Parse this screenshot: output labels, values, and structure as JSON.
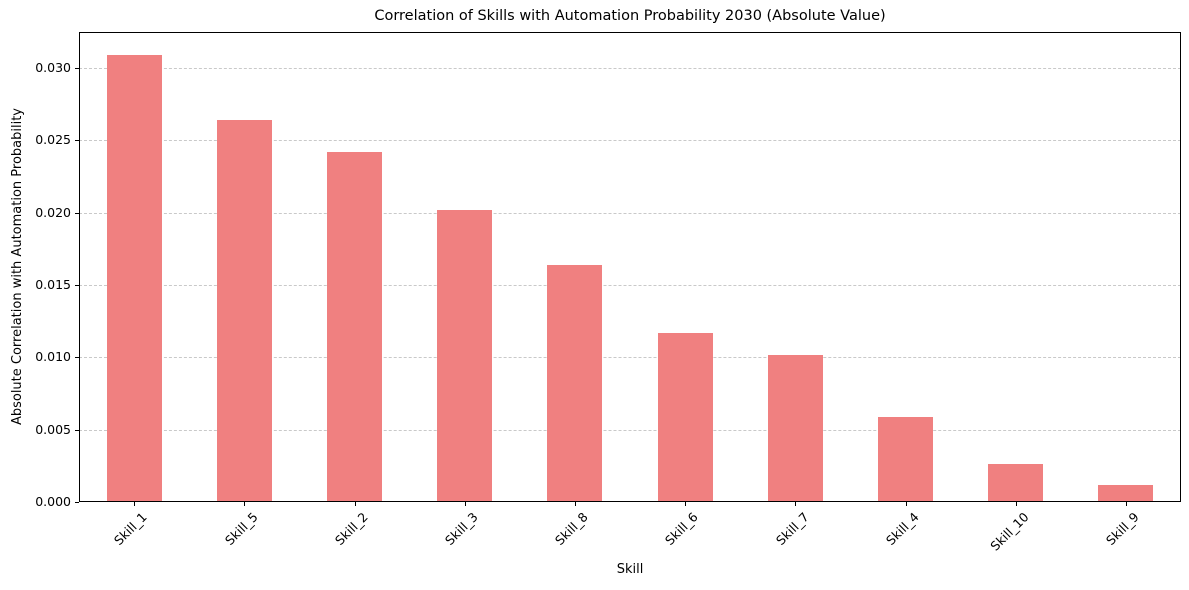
{
  "chart_data": {
    "type": "bar",
    "title": "Correlation of Skills with Automation Probability 2030 (Absolute Value)",
    "xlabel": "Skill",
    "ylabel": "Absolute Correlation with Automation Probability",
    "categories": [
      "Skill_1",
      "Skill_5",
      "Skill_2",
      "Skill_3",
      "Skill_8",
      "Skill_6",
      "Skill_7",
      "Skill_4",
      "Skill_10",
      "Skill_9"
    ],
    "values": [
      0.0309,
      0.0264,
      0.0242,
      0.0202,
      0.0164,
      0.0117,
      0.0102,
      0.0059,
      0.0026,
      0.0012
    ],
    "ylim": [
      0,
      0.0325
    ],
    "y_ticks": [
      0.0,
      0.005,
      0.01,
      0.015,
      0.02,
      0.025,
      0.03
    ],
    "y_tick_labels": [
      "0.000",
      "0.005",
      "0.010",
      "0.015",
      "0.020",
      "0.025",
      "0.030"
    ],
    "x_tick_rotation_deg": 45,
    "grid": "horizontal-dashed",
    "legend": "none",
    "bar_color": "#f08080",
    "grid_color": "#c9c9c9",
    "axis_color": "#000000",
    "background_color": "#ffffff"
  }
}
